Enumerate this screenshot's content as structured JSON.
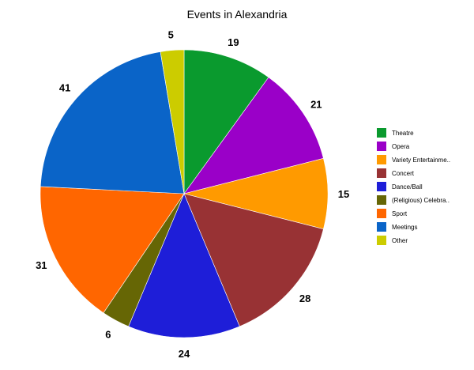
{
  "chart_data": {
    "type": "pie",
    "title": "Events in Alexandria",
    "start_angle_deg": 0,
    "direction": "clockwise",
    "legend_position": "right",
    "slices": [
      {
        "label": "Theatre",
        "legend_label": "Theatre",
        "value": 19,
        "color": "#0a9a2e"
      },
      {
        "label": "Opera",
        "legend_label": "Opera",
        "value": 21,
        "color": "#9a00c8"
      },
      {
        "label": "Variety Entertainment",
        "legend_label": "Variety Entertainme..",
        "value": 15,
        "color": "#ff9a00"
      },
      {
        "label": "Concert",
        "legend_label": "Concert",
        "value": 28,
        "color": "#983234"
      },
      {
        "label": "Dance/Ball",
        "legend_label": "Dance/Ball",
        "value": 24,
        "color": "#1e1ed8"
      },
      {
        "label": "(Religious) Celebration",
        "legend_label": "(Religious) Celebra..",
        "value": 6,
        "color": "#666605"
      },
      {
        "label": "Sport",
        "legend_label": "Sport",
        "value": 31,
        "color": "#ff6600"
      },
      {
        "label": "Meetings",
        "legend_label": "Meetings",
        "value": 41,
        "color": "#0a64c8"
      },
      {
        "label": "Other",
        "legend_label": "Other",
        "value": 5,
        "color": "#cccc00"
      }
    ]
  }
}
